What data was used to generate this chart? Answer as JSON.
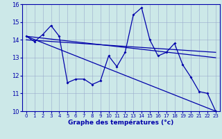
{
  "title": "",
  "xlabel": "Graphe des températures (°c)",
  "bg_color": "#cce8e8",
  "grid_color": "#99aacc",
  "line_color": "#0000aa",
  "xlim": [
    -0.5,
    23.5
  ],
  "ylim": [
    10,
    16
  ],
  "xticks": [
    0,
    1,
    2,
    3,
    4,
    5,
    6,
    7,
    8,
    9,
    10,
    11,
    12,
    13,
    14,
    15,
    16,
    17,
    18,
    19,
    20,
    21,
    22,
    23
  ],
  "yticks": [
    10,
    11,
    12,
    13,
    14,
    15,
    16
  ],
  "hours": [
    0,
    1,
    2,
    3,
    4,
    5,
    6,
    7,
    8,
    9,
    10,
    11,
    12,
    13,
    14,
    15,
    16,
    17,
    18,
    19,
    20,
    21,
    22,
    23
  ],
  "temps": [
    14.2,
    13.9,
    14.3,
    14.8,
    14.2,
    11.6,
    11.8,
    11.8,
    11.5,
    11.7,
    13.1,
    12.5,
    13.3,
    15.4,
    15.8,
    14.0,
    13.1,
    13.3,
    13.8,
    12.6,
    11.9,
    11.1,
    11.0,
    10.0
  ],
  "trend1_x": [
    0,
    23
  ],
  "trend1_y": [
    14.2,
    13.0
  ],
  "trend2_x": [
    0,
    23
  ],
  "trend2_y": [
    14.2,
    10.0
  ],
  "trend3_x": [
    0,
    23
  ],
  "trend3_y": [
    14.0,
    13.3
  ]
}
